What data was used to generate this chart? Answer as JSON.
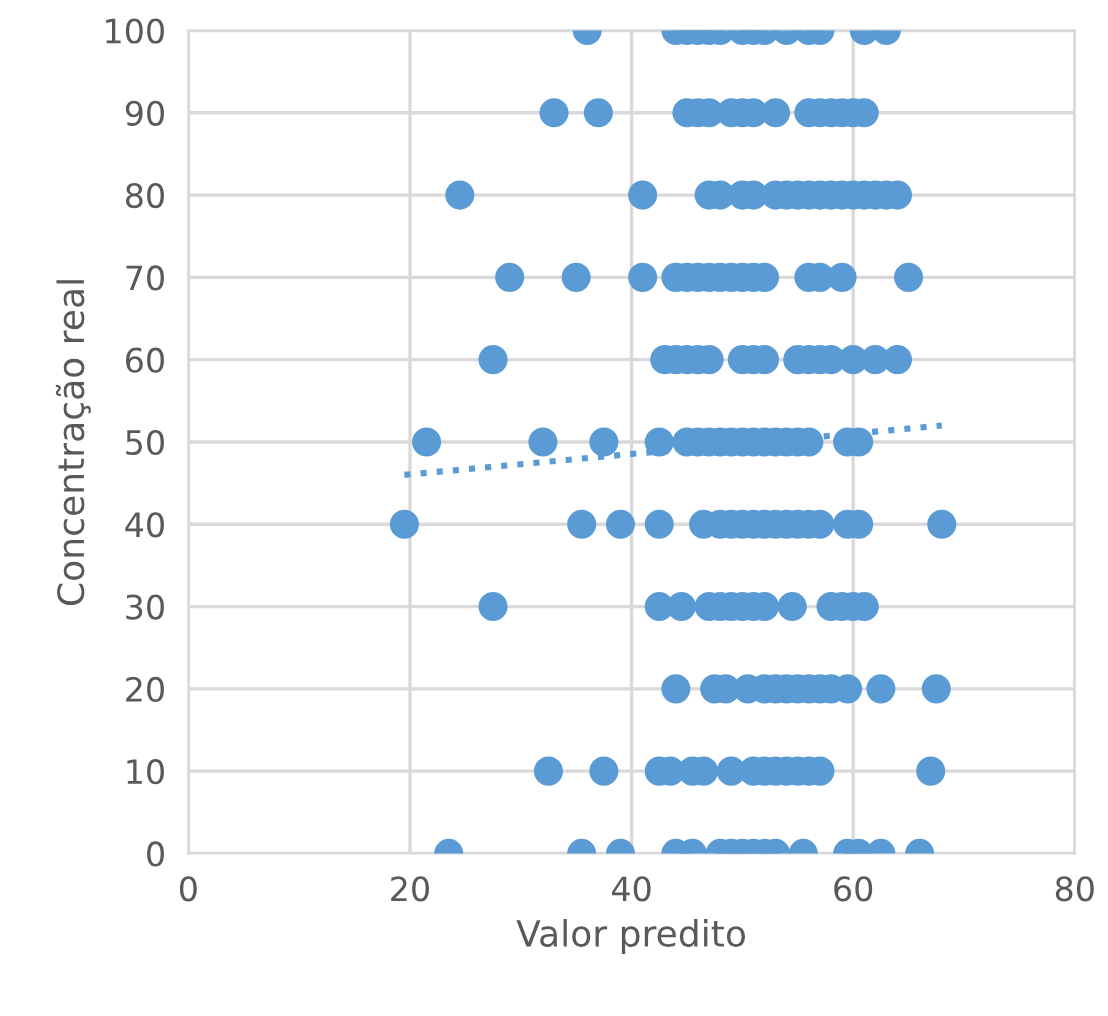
{
  "chart_data": {
    "type": "scatter",
    "xlabel": "Valor predito",
    "ylabel": "Concentração real",
    "xlim": [
      0,
      80
    ],
    "xticks": [
      0,
      20,
      40,
      60,
      80
    ],
    "ylim": [
      0,
      100
    ],
    "yticks": [
      0,
      10,
      20,
      30,
      40,
      50,
      60,
      70,
      80,
      90,
      100
    ],
    "grid": true,
    "series": [
      {
        "marker": "circle",
        "color": "#5b9bd5",
        "x": [
          36,
          44,
          45,
          46,
          47,
          48,
          50,
          51,
          52,
          54,
          56,
          57,
          61,
          63,
          33,
          37,
          45,
          46,
          47,
          49,
          50,
          51,
          53,
          56,
          57,
          58,
          59,
          60,
          61,
          24.5,
          41,
          47,
          48,
          50,
          51,
          53,
          54,
          55,
          56,
          57,
          58,
          59,
          60,
          61,
          62,
          63,
          64,
          29,
          35,
          41,
          44,
          45,
          46,
          47,
          48,
          49,
          50,
          51,
          52,
          56,
          57,
          59,
          65,
          27.5,
          43,
          44,
          45,
          46,
          47,
          50,
          51,
          52,
          55,
          56,
          57,
          58,
          60,
          62,
          64,
          21.5,
          32,
          37.5,
          42.5,
          45,
          46,
          47,
          48,
          49,
          50,
          51,
          52,
          53,
          54,
          55,
          56,
          59.5,
          60.5,
          19.5,
          35.5,
          39,
          42.5,
          46.5,
          48,
          49,
          50,
          51,
          52,
          53,
          54,
          55,
          56,
          57,
          59.5,
          60.5,
          68,
          27.5,
          42.5,
          44.5,
          47,
          48,
          49,
          50,
          51,
          52,
          54.5,
          58,
          59,
          60,
          61,
          44,
          47.5,
          48.5,
          50.5,
          52,
          53,
          54,
          55,
          56,
          57,
          58,
          59.5,
          62.5,
          67.5,
          32.5,
          37.5,
          42.5,
          43.5,
          45.5,
          46.5,
          49,
          51,
          52,
          53,
          54,
          55,
          56,
          57,
          67,
          23.5,
          35.5,
          39,
          44,
          45.5,
          48,
          49,
          50,
          51,
          52,
          53,
          55.5,
          59.5,
          60.5,
          62.5,
          66
        ],
        "values": [
          100,
          100,
          100,
          100,
          100,
          100,
          100,
          100,
          100,
          100,
          100,
          100,
          100,
          100,
          90,
          90,
          90,
          90,
          90,
          90,
          90,
          90,
          90,
          90,
          90,
          90,
          90,
          90,
          90,
          80,
          80,
          80,
          80,
          80,
          80,
          80,
          80,
          80,
          80,
          80,
          80,
          80,
          80,
          80,
          80,
          80,
          80,
          70,
          70,
          70,
          70,
          70,
          70,
          70,
          70,
          70,
          70,
          70,
          70,
          70,
          70,
          70,
          70,
          60,
          60,
          60,
          60,
          60,
          60,
          60,
          60,
          60,
          60,
          60,
          60,
          60,
          60,
          60,
          60,
          50,
          50,
          50,
          50,
          50,
          50,
          50,
          50,
          50,
          50,
          50,
          50,
          50,
          50,
          50,
          50,
          50,
          50,
          40,
          40,
          40,
          40,
          40,
          40,
          40,
          40,
          40,
          40,
          40,
          40,
          40,
          40,
          40,
          40,
          40,
          40,
          30,
          30,
          30,
          30,
          30,
          30,
          30,
          30,
          30,
          30,
          30,
          30,
          30,
          30,
          20,
          20,
          20,
          20,
          20,
          20,
          20,
          20,
          20,
          20,
          20,
          20,
          20,
          20,
          10,
          10,
          10,
          10,
          10,
          10,
          10,
          10,
          10,
          10,
          10,
          10,
          10,
          10,
          10,
          0,
          0,
          0,
          0,
          0,
          0,
          0,
          0,
          0,
          0,
          0,
          0,
          0,
          0,
          0,
          0
        ]
      },
      {
        "type": "line",
        "marker": "none",
        "color": "#5b9bd5",
        "line_style": "dotted",
        "x": [
          19.5,
          68
        ],
        "values": [
          46,
          52
        ]
      }
    ]
  }
}
